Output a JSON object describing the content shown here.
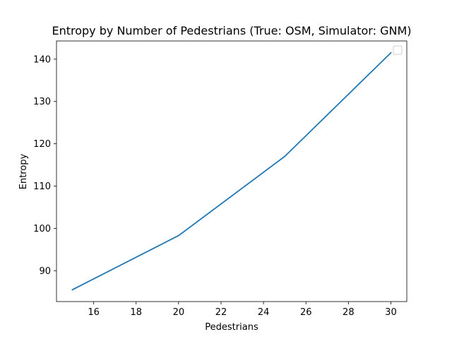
{
  "chart_data": {
    "type": "line",
    "title": "Entropy by Number of Pedestrians (True: OSM, Simulator: GNM)",
    "xlabel": "Pedestrians",
    "ylabel": "Entropy",
    "xlim": [
      14.25,
      30.75
    ],
    "ylim": [
      82.7,
      144.3
    ],
    "xticks": [
      16,
      18,
      20,
      22,
      24,
      26,
      28,
      30
    ],
    "yticks": [
      90,
      100,
      110,
      120,
      130,
      140
    ],
    "grid": false,
    "legend": {
      "placement": "top-right",
      "entries": []
    },
    "series": [
      {
        "color": "#1f77b4",
        "x": [
          15,
          20,
          25,
          30
        ],
        "y": [
          85.5,
          98.3,
          117.0,
          141.5
        ]
      }
    ]
  }
}
